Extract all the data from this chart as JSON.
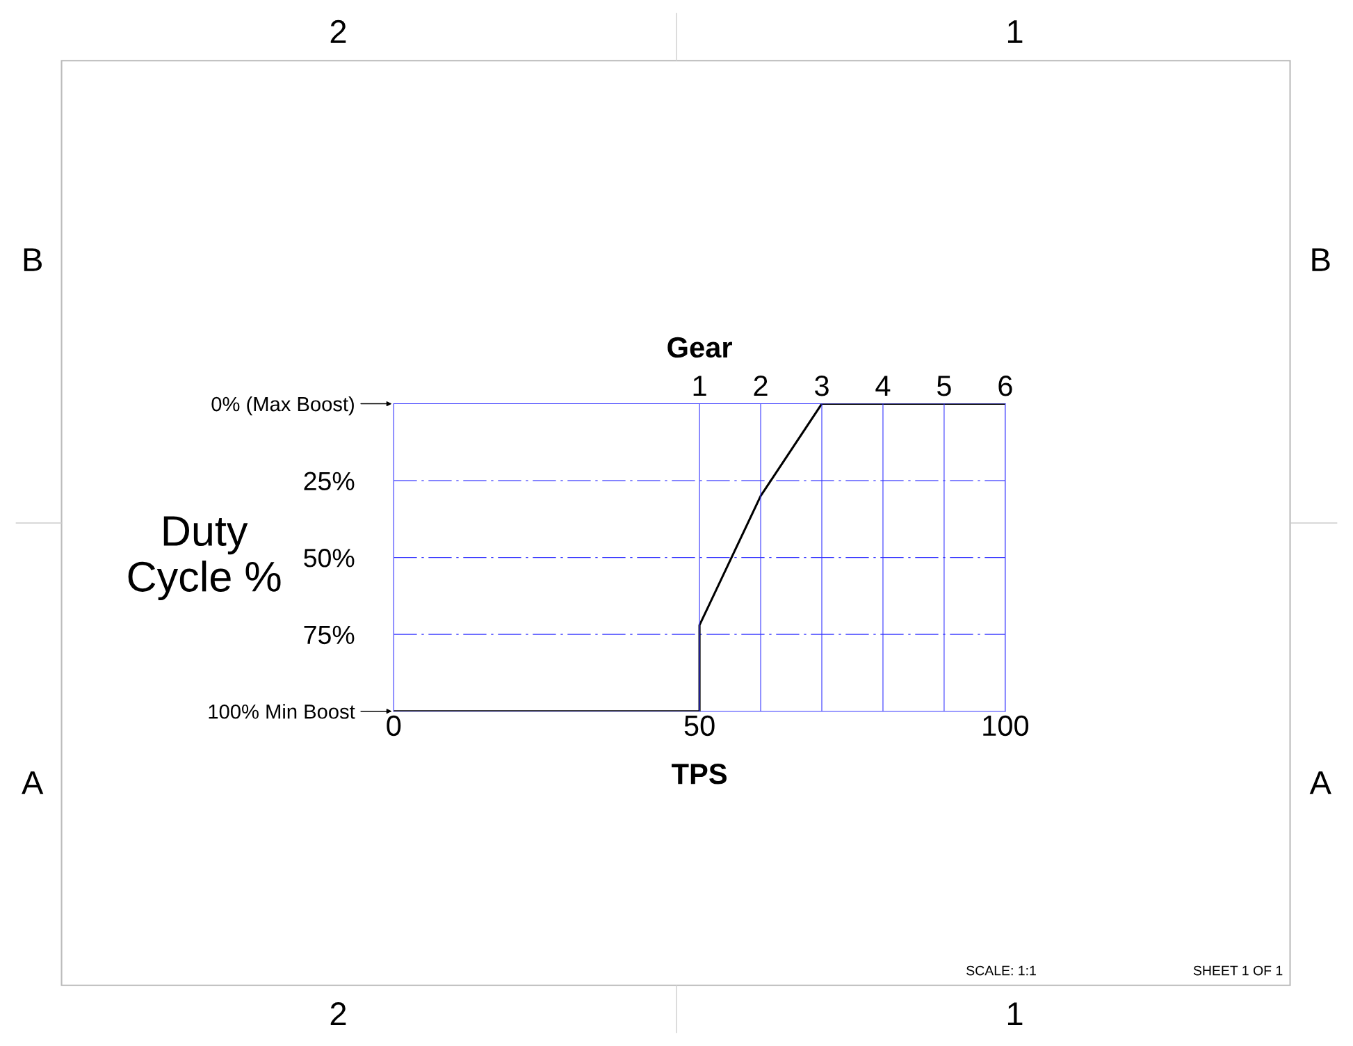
{
  "chart_data": {
    "type": "line",
    "xlabel": "TPS",
    "ylabel": "Duty\nCycle %",
    "x2label": "Gear",
    "x": [
      0,
      50,
      50,
      60,
      70,
      100
    ],
    "series": [
      {
        "color": "#000000",
        "values": [
          100,
          100,
          72,
          30,
          0,
          0
        ]
      }
    ],
    "xlim": [
      0,
      100
    ],
    "xticks": [
      0,
      50,
      100
    ],
    "x2lim": [
      -4,
      6
    ],
    "x2ticks": [
      1,
      2,
      3,
      4,
      5,
      6
    ],
    "ylim": [
      100,
      0
    ],
    "yticks": [
      {
        "value": 0,
        "label": "0% (Max Boost)"
      },
      {
        "value": 25,
        "label": "25%"
      },
      {
        "value": 50,
        "label": "50%"
      },
      {
        "value": 75,
        "label": "75%"
      },
      {
        "value": 100,
        "label": "100% Min Boost"
      }
    ],
    "grid": true,
    "marker": "none",
    "line_style": "solid",
    "annotations": [
      "2",
      "1",
      "2",
      "1",
      "B",
      "B",
      "A",
      "A",
      "SCALE: 1:1",
      "SHEET 1 OF 1"
    ]
  }
}
